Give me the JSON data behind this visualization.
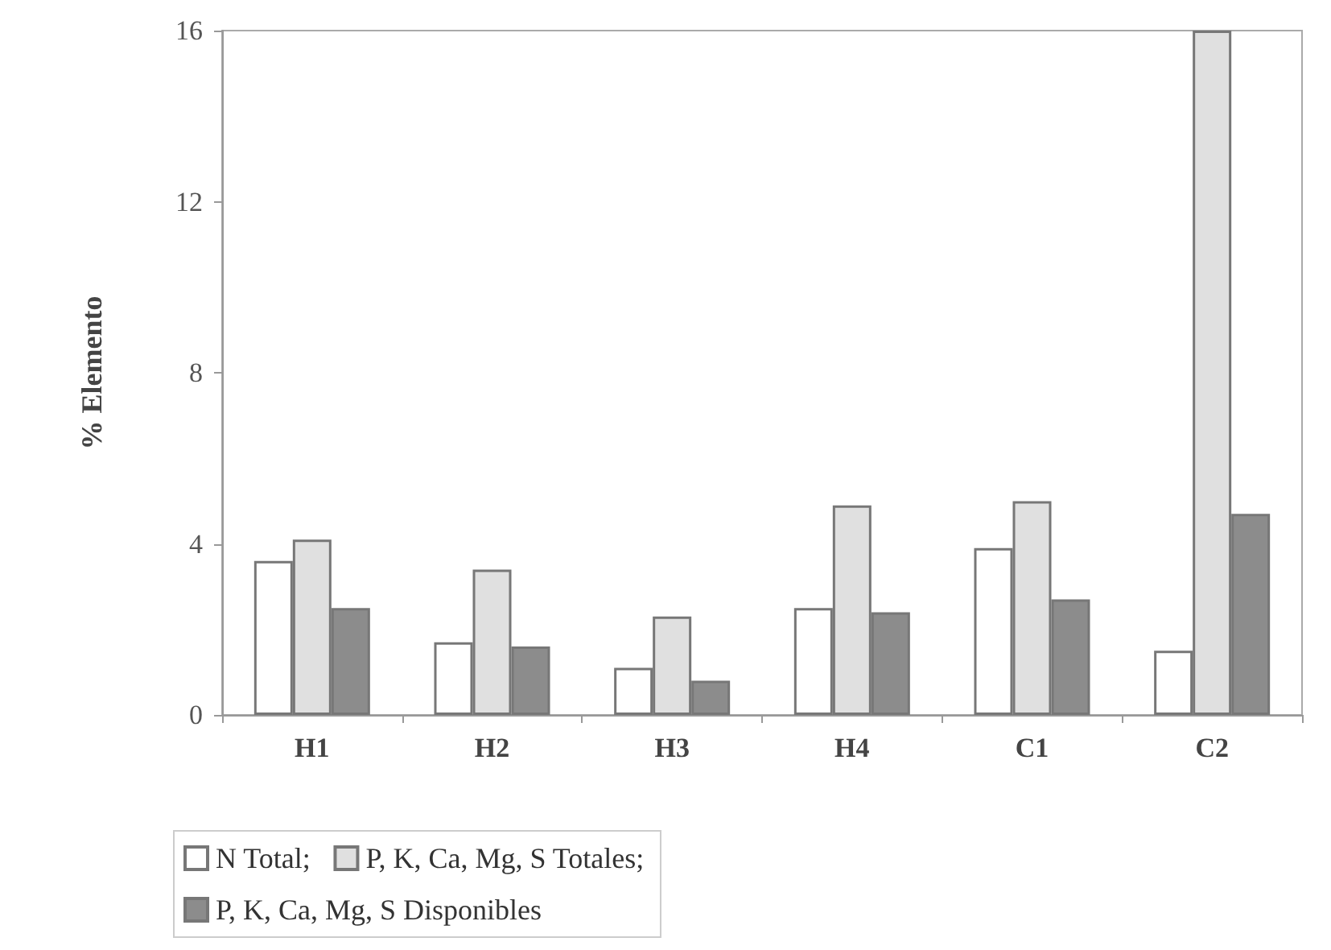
{
  "chart_data": {
    "type": "bar",
    "ylabel": "% Elemento",
    "categories": [
      "H1",
      "H2",
      "H3",
      "H4",
      "C1",
      "C2"
    ],
    "series": [
      {
        "name": "N Total;",
        "color": "#ffffff",
        "values": [
          3.6,
          1.7,
          1.1,
          2.5,
          3.9,
          1.5
        ]
      },
      {
        "name": "P, K, Ca, Mg, S Totales;",
        "color": "#e0e0e0",
        "values": [
          4.1,
          3.4,
          2.3,
          4.9,
          5.0,
          16
        ]
      },
      {
        "name": "P, K, Ca, Mg, S Disponibles",
        "color": "#8c8c8c",
        "values": [
          2.5,
          1.6,
          0.8,
          2.4,
          2.7,
          4.7
        ]
      }
    ],
    "ylim": [
      0,
      16
    ],
    "yticks": [
      0,
      4,
      8,
      12,
      16
    ],
    "grid": false,
    "legend": "bottom"
  }
}
